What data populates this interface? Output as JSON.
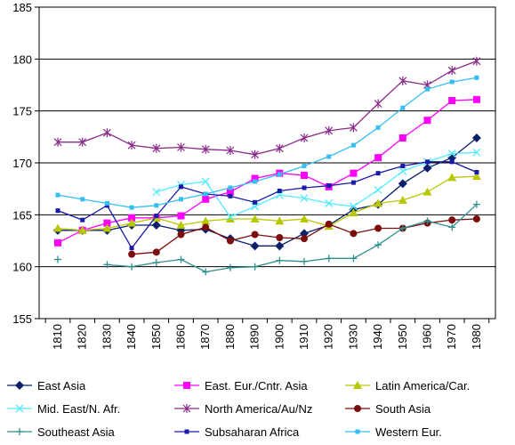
{
  "chart_data": {
    "type": "line",
    "title": "",
    "xlabel": "",
    "ylabel": "",
    "x": [
      1810,
      1820,
      1830,
      1840,
      1850,
      1860,
      1870,
      1880,
      1890,
      1900,
      1910,
      1920,
      1930,
      1940,
      1950,
      1960,
      1970,
      1980
    ],
    "xtick_labels": [
      "1810",
      "1820",
      "1830",
      "1840",
      "1850",
      "1860",
      "1870",
      "1880",
      "1890",
      "1900",
      "1910",
      "1920",
      "1930",
      "1940",
      "1950",
      "1960",
      "1970",
      "1980"
    ],
    "ylim": [
      155,
      185
    ],
    "yticks": [
      155,
      160,
      165,
      170,
      175,
      180,
      185
    ],
    "ytick_labels": [
      "155",
      "160",
      "165",
      "170",
      "175",
      "180",
      "185"
    ],
    "grid": "horizontal",
    "legend_position": "bottom",
    "series": [
      {
        "name": "East Asia",
        "color": "#0b1f6b",
        "marker": "diamond",
        "values": [
          163.5,
          163.5,
          163.5,
          164.0,
          164.0,
          163.5,
          163.6,
          162.7,
          162.0,
          162.0,
          163.2,
          164.0,
          165.5,
          166.0,
          168.0,
          169.5,
          170.5,
          172.4
        ]
      },
      {
        "name": "East. Eur./Cntr. Asia",
        "color": "#ff00ff",
        "marker": "square",
        "values": [
          162.3,
          163.5,
          164.2,
          164.7,
          164.7,
          164.9,
          166.5,
          167.2,
          168.5,
          169.0,
          168.8,
          167.7,
          169.0,
          170.5,
          172.4,
          174.1,
          176.0,
          176.1
        ]
      },
      {
        "name": "Latin America/Car.",
        "color": "#b8c800",
        "marker": "triangle",
        "values": [
          163.7,
          163.5,
          163.7,
          164.2,
          164.7,
          164.0,
          164.4,
          164.6,
          164.6,
          164.4,
          164.6,
          163.9,
          165.2,
          166.1,
          166.4,
          167.2,
          168.6,
          168.7
        ]
      },
      {
        "name": "Mid. East/N. Afr.",
        "color": "#55eaff",
        "marker": "x",
        "values": [
          null,
          null,
          null,
          null,
          167.2,
          167.9,
          168.2,
          164.8,
          165.8,
          166.9,
          166.6,
          166.1,
          165.8,
          167.4,
          169.2,
          170.1,
          170.9,
          171.0
        ]
      },
      {
        "name": "North America/Au/Nz",
        "color": "#8a2a8a",
        "marker": "star",
        "values": [
          172.0,
          172.0,
          172.9,
          171.7,
          171.4,
          171.5,
          171.3,
          171.2,
          170.8,
          171.4,
          172.4,
          173.1,
          173.4,
          175.7,
          177.9,
          177.5,
          178.9,
          179.8
        ]
      },
      {
        "name": "South Asia",
        "color": "#7b0d0d",
        "marker": "circle",
        "values": [
          null,
          null,
          null,
          161.2,
          161.4,
          163.1,
          163.8,
          162.5,
          163.1,
          162.8,
          162.7,
          164.1,
          163.2,
          163.7,
          163.7,
          164.2,
          164.5,
          164.6
        ]
      },
      {
        "name": "Southeast Asia",
        "color": "#2f8f8f",
        "marker": "plus",
        "values": [
          160.7,
          null,
          160.2,
          160.0,
          160.4,
          160.7,
          159.5,
          159.9,
          160.0,
          160.6,
          160.5,
          160.8,
          160.8,
          162.1,
          163.7,
          164.4,
          163.8,
          166.0
        ]
      },
      {
        "name": "Subsaharan Africa",
        "color": "#1a1aa8",
        "marker": "smallsquare",
        "values": [
          165.4,
          164.5,
          165.9,
          161.8,
          164.9,
          167.7,
          167.0,
          166.8,
          166.2,
          167.3,
          167.6,
          167.8,
          168.1,
          169.0,
          169.7,
          170.1,
          170.1,
          169.1
        ]
      },
      {
        "name": "Western Eur.",
        "color": "#33bff2",
        "marker": "smallsquare",
        "values": [
          166.9,
          166.5,
          166.1,
          165.7,
          165.9,
          166.5,
          167.0,
          167.6,
          168.2,
          168.9,
          169.7,
          170.6,
          171.7,
          173.4,
          175.3,
          177.1,
          177.8,
          178.2
        ]
      }
    ]
  }
}
